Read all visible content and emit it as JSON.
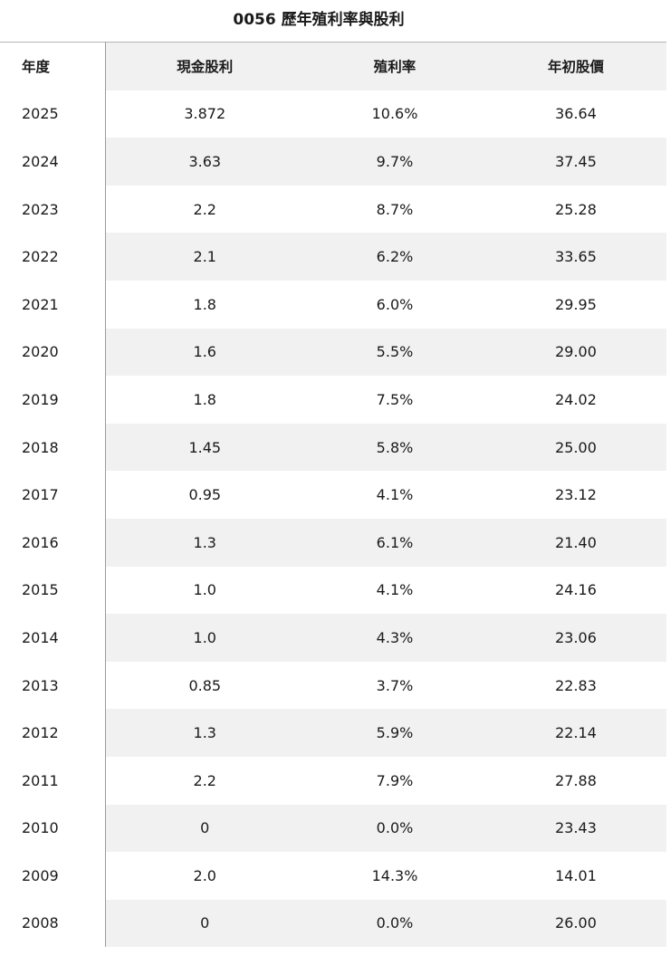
{
  "title": "0056  歷年殖利率與股利",
  "headers": {
    "year": "年度",
    "dividend": "現金股利",
    "yield": "殖利率",
    "price": "年初股價"
  },
  "rows": [
    {
      "year": "2025",
      "dividend": "3.872",
      "yield": "10.6%",
      "price": "36.64"
    },
    {
      "year": "2024",
      "dividend": "3.63",
      "yield": "9.7%",
      "price": "37.45"
    },
    {
      "year": "2023",
      "dividend": "2.2",
      "yield": "8.7%",
      "price": "25.28"
    },
    {
      "year": "2022",
      "dividend": "2.1",
      "yield": "6.2%",
      "price": "33.65"
    },
    {
      "year": "2021",
      "dividend": "1.8",
      "yield": "6.0%",
      "price": "29.95"
    },
    {
      "year": "2020",
      "dividend": "1.6",
      "yield": "5.5%",
      "price": "29.00"
    },
    {
      "year": "2019",
      "dividend": "1.8",
      "yield": "7.5%",
      "price": "24.02"
    },
    {
      "year": "2018",
      "dividend": "1.45",
      "yield": "5.8%",
      "price": "25.00"
    },
    {
      "year": "2017",
      "dividend": "0.95",
      "yield": "4.1%",
      "price": "23.12"
    },
    {
      "year": "2016",
      "dividend": "1.3",
      "yield": "6.1%",
      "price": "21.40"
    },
    {
      "year": "2015",
      "dividend": "1.0",
      "yield": "4.1%",
      "price": "24.16"
    },
    {
      "year": "2014",
      "dividend": "1.0",
      "yield": "4.3%",
      "price": "23.06"
    },
    {
      "year": "2013",
      "dividend": "0.85",
      "yield": "3.7%",
      "price": "22.83"
    },
    {
      "year": "2012",
      "dividend": "1.3",
      "yield": "5.9%",
      "price": "22.14"
    },
    {
      "year": "2011",
      "dividend": "2.2",
      "yield": "7.9%",
      "price": "27.88"
    },
    {
      "year": "2010",
      "dividend": "0",
      "yield": "0.0%",
      "price": "23.43"
    },
    {
      "year": "2009",
      "dividend": "2.0",
      "yield": "14.3%",
      "price": "14.01"
    },
    {
      "year": "2008",
      "dividend": "0",
      "yield": "0.0%",
      "price": "26.00"
    }
  ]
}
